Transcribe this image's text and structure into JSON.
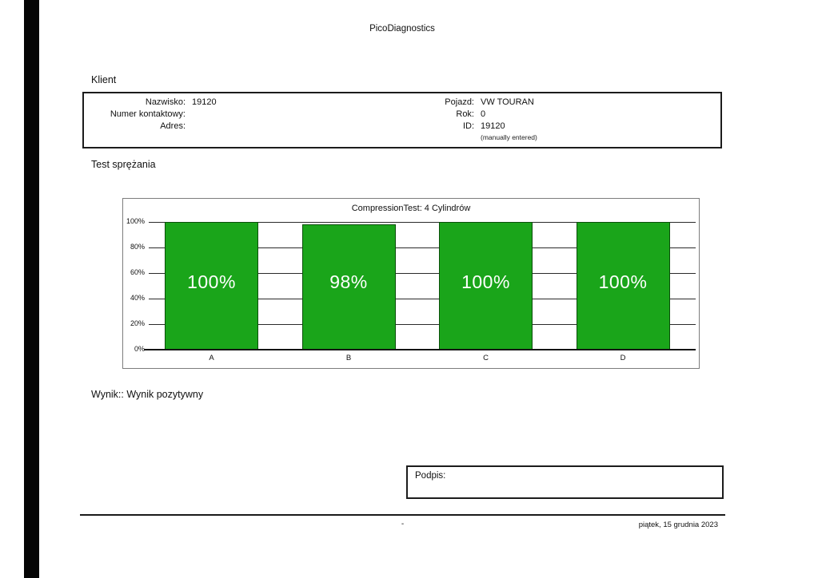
{
  "doc": {
    "title": "PicoDiagnostics"
  },
  "client": {
    "section_label": "Klient",
    "fields_left": [
      {
        "label": "Nazwisko:",
        "value": "19120"
      },
      {
        "label": "Numer kontaktowy:",
        "value": ""
      },
      {
        "label": "Adres:",
        "value": ""
      }
    ],
    "fields_right": [
      {
        "label": "Pojazd:",
        "value": "VW TOURAN"
      },
      {
        "label": "Rok:",
        "value": "0"
      },
      {
        "label": "ID:",
        "value": "19120"
      }
    ],
    "note": "(manually entered)"
  },
  "test_section": {
    "label": "Test sprężania",
    "result_text": "Wynik:: Wynik pozytywny"
  },
  "signature": {
    "label": "Podpis:"
  },
  "footer": {
    "center_text": "-",
    "date": "piątek, 15 grudnia 2023"
  },
  "chart_data": {
    "type": "bar",
    "title": "CompressionTest: 4 Cylindrów",
    "categories": [
      "A",
      "B",
      "C",
      "D"
    ],
    "values": [
      100,
      98,
      100,
      100
    ],
    "value_labels": [
      "100%",
      "98%",
      "100%",
      "100%"
    ],
    "xlabel": "",
    "ylabel": "",
    "y_ticks": [
      "100%",
      "80%",
      "60%",
      "40%",
      "20%",
      "0%"
    ],
    "ylim": [
      0,
      100
    ],
    "grid": true,
    "legend": false,
    "bar_color": "#1aa51a",
    "bar_border_color": "#0a4f0a",
    "value_label_color": "#ffffff"
  }
}
